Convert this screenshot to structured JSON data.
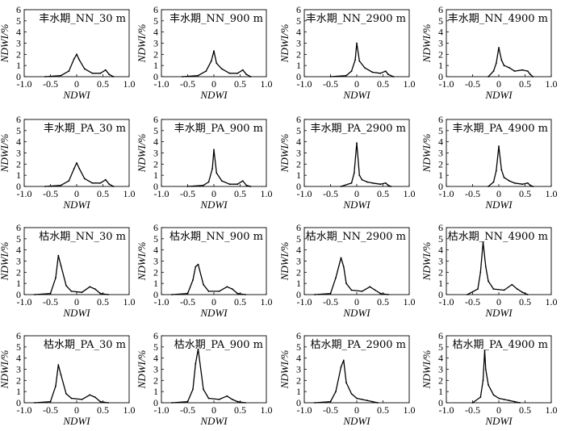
{
  "axes": {
    "xlabel": "NDWI",
    "ylabel": "NDWI/%",
    "xlim": [
      -1.0,
      1.0
    ],
    "ylim": [
      0,
      6
    ],
    "xticks": [
      "-1.0",
      "-0.5",
      "0",
      "0.5",
      "1.0"
    ],
    "yticks": [
      "0",
      "1",
      "2",
      "3",
      "4",
      "5",
      "6"
    ]
  },
  "chart_data": [
    {
      "type": "line",
      "title": "丰水期_NN_30 m",
      "x": [
        -0.6,
        -0.3,
        -0.15,
        -0.05,
        0.0,
        0.05,
        0.15,
        0.3,
        0.45,
        0.55,
        0.62,
        0.7
      ],
      "y": [
        0,
        0.1,
        0.5,
        1.6,
        2.0,
        1.5,
        0.7,
        0.3,
        0.3,
        0.6,
        0.2,
        0
      ]
    },
    {
      "type": "line",
      "title": "丰水期_NN_900 m",
      "x": [
        -0.6,
        -0.3,
        -0.15,
        -0.05,
        0.0,
        0.05,
        0.15,
        0.3,
        0.45,
        0.55,
        0.62,
        0.7
      ],
      "y": [
        0,
        0.1,
        0.5,
        1.4,
        2.3,
        1.2,
        0.7,
        0.3,
        0.3,
        0.6,
        0.2,
        0
      ]
    },
    {
      "type": "line",
      "title": "丰水期_NN_2900 m",
      "x": [
        -0.5,
        -0.2,
        -0.1,
        -0.03,
        0.0,
        0.05,
        0.15,
        0.3,
        0.45,
        0.55,
        0.6,
        0.7
      ],
      "y": [
        0,
        0.1,
        0.5,
        1.5,
        3.0,
        1.4,
        0.8,
        0.4,
        0.3,
        0.5,
        0.2,
        0
      ]
    },
    {
      "type": "line",
      "title": "丰水期_NN_4900 m",
      "x": [
        -0.2,
        -0.1,
        -0.05,
        0.0,
        0.05,
        0.1,
        0.2,
        0.3,
        0.45,
        0.55,
        0.6,
        0.65
      ],
      "y": [
        0,
        0.5,
        1.2,
        2.6,
        1.5,
        1.0,
        0.8,
        0.5,
        0.6,
        0.5,
        0.2,
        0
      ]
    },
    {
      "type": "line",
      "title": "丰水期_PA_30 m",
      "x": [
        -0.6,
        -0.3,
        -0.15,
        -0.05,
        0.0,
        0.05,
        0.15,
        0.3,
        0.45,
        0.55,
        0.62,
        0.7
      ],
      "y": [
        0,
        0.1,
        0.5,
        1.6,
        2.1,
        1.6,
        0.7,
        0.3,
        0.3,
        0.6,
        0.2,
        0
      ]
    },
    {
      "type": "line",
      "title": "丰水期_PA_900 m",
      "x": [
        -0.5,
        -0.2,
        -0.1,
        -0.03,
        0.0,
        0.05,
        0.15,
        0.3,
        0.45,
        0.55,
        0.62,
        0.7
      ],
      "y": [
        0,
        0.1,
        0.4,
        1.6,
        3.3,
        1.2,
        0.5,
        0.2,
        0.2,
        0.5,
        0.1,
        0
      ]
    },
    {
      "type": "line",
      "title": "丰水期_PA_2900 m",
      "x": [
        -0.3,
        -0.1,
        -0.05,
        0.0,
        0.05,
        0.1,
        0.2,
        0.3,
        0.45,
        0.55,
        0.6,
        0.65
      ],
      "y": [
        0,
        0.3,
        1.2,
        3.9,
        1.0,
        0.6,
        0.4,
        0.3,
        0.2,
        0.3,
        0.1,
        0
      ]
    },
    {
      "type": "line",
      "title": "丰水期_PA_4900 m",
      "x": [
        -0.2,
        -0.1,
        -0.05,
        0.0,
        0.05,
        0.1,
        0.2,
        0.3,
        0.45,
        0.55,
        0.6,
        0.65
      ],
      "y": [
        0,
        0.4,
        1.4,
        3.6,
        1.5,
        0.8,
        0.5,
        0.3,
        0.2,
        0.3,
        0.1,
        0
      ]
    },
    {
      "type": "line",
      "title": "枯水期_NN_30 m",
      "x": [
        -0.8,
        -0.5,
        -0.4,
        -0.35,
        -0.3,
        -0.2,
        -0.1,
        0.1,
        0.25,
        0.35,
        0.45,
        0.6
      ],
      "y": [
        0,
        0.1,
        1.5,
        3.5,
        2.6,
        0.8,
        0.3,
        0.2,
        0.7,
        0.5,
        0.1,
        0
      ]
    },
    {
      "type": "line",
      "title": "枯水期_NN_900 m",
      "x": [
        -0.8,
        -0.5,
        -0.4,
        -0.35,
        -0.3,
        -0.2,
        -0.1,
        0.1,
        0.25,
        0.35,
        0.45,
        0.6
      ],
      "y": [
        0,
        0.1,
        1.3,
        2.5,
        2.7,
        0.9,
        0.3,
        0.3,
        0.7,
        0.5,
        0.1,
        0
      ]
    },
    {
      "type": "line",
      "title": "枯水期_NN_2900 m",
      "x": [
        -0.8,
        -0.5,
        -0.4,
        -0.3,
        -0.25,
        -0.2,
        -0.1,
        0.1,
        0.25,
        0.35,
        0.45,
        0.6
      ],
      "y": [
        0,
        0.1,
        1.5,
        3.3,
        2.5,
        1.0,
        0.4,
        0.3,
        0.7,
        0.4,
        0.1,
        0
      ]
    },
    {
      "type": "line",
      "title": "枯水期_NN_4900 m",
      "x": [
        -0.6,
        -0.4,
        -0.35,
        -0.3,
        -0.25,
        -0.2,
        -0.1,
        0.1,
        0.25,
        0.35,
        0.45,
        0.55
      ],
      "y": [
        0,
        0.5,
        2.0,
        4.7,
        2.5,
        1.2,
        0.5,
        0.4,
        0.9,
        0.5,
        0.2,
        0
      ]
    },
    {
      "type": "line",
      "title": "枯水期_PA_30 m",
      "x": [
        -0.8,
        -0.5,
        -0.4,
        -0.35,
        -0.3,
        -0.2,
        -0.1,
        0.1,
        0.25,
        0.35,
        0.45,
        0.6
      ],
      "y": [
        0,
        0.1,
        1.5,
        3.4,
        2.5,
        0.8,
        0.4,
        0.3,
        0.7,
        0.5,
        0.1,
        0
      ]
    },
    {
      "type": "line",
      "title": "枯水期_PA_900 m",
      "x": [
        -0.8,
        -0.5,
        -0.4,
        -0.35,
        -0.3,
        -0.2,
        -0.1,
        0.1,
        0.25,
        0.35,
        0.45,
        0.6
      ],
      "y": [
        0,
        0.1,
        1.2,
        3.5,
        4.8,
        1.2,
        0.4,
        0.3,
        0.6,
        0.3,
        0.1,
        0
      ]
    },
    {
      "type": "line",
      "title": "枯水期_PA_2900 m",
      "x": [
        -0.8,
        -0.5,
        -0.4,
        -0.3,
        -0.25,
        -0.2,
        -0.1,
        0.0,
        0.1,
        0.2,
        0.3,
        0.4
      ],
      "y": [
        0,
        0.1,
        1.0,
        3.2,
        3.8,
        1.8,
        0.8,
        0.4,
        0.3,
        0.2,
        0.1,
        0
      ]
    },
    {
      "type": "line",
      "title": "枯水期_PA_4900 m",
      "x": [
        -0.5,
        -0.35,
        -0.3,
        -0.27,
        -0.25,
        -0.2,
        -0.1,
        0.0,
        0.1,
        0.2,
        0.3,
        0.4
      ],
      "y": [
        0,
        0.5,
        2.0,
        4.7,
        3.0,
        1.6,
        0.7,
        0.4,
        0.3,
        0.2,
        0.1,
        0
      ]
    }
  ]
}
